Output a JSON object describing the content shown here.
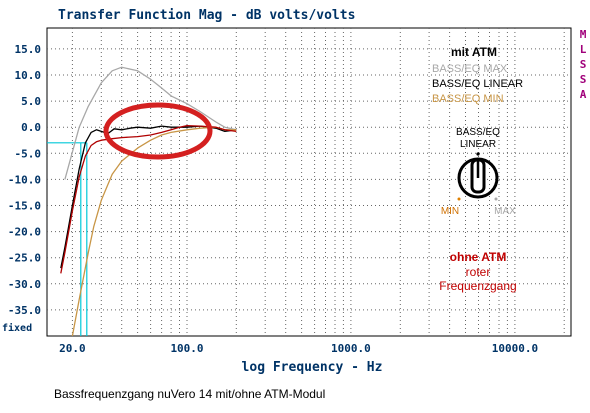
{
  "chart_data": {
    "type": "line",
    "title": "Transfer Function Mag - dB volts/volts",
    "xlabel": "log Frequency - Hz",
    "ylabel": "",
    "xscale": "log",
    "xlim": [
      14,
      22000
    ],
    "ylim": [
      -40,
      19
    ],
    "grid": true,
    "y_ticks": [
      "15.0",
      "10.0",
      "5.0",
      "0.0",
      "-5.0",
      "-10.0",
      "-15.0",
      "-20.0",
      "-25.0",
      "-30.0",
      "-35.0"
    ],
    "y_tick_values": [
      15,
      10,
      5,
      0,
      -5,
      -10,
      -15,
      -20,
      -25,
      -30,
      -35
    ],
    "y_bottom_label": "fixed",
    "x_ticks": [
      "20.0",
      "100.0",
      "1000.0",
      "10000.0"
    ],
    "x_tick_values": [
      20,
      100,
      1000,
      10000
    ],
    "brand_vertical": [
      "M",
      "L",
      "S",
      "S",
      "A"
    ],
    "series": [
      {
        "name": "BASS/EQ MAX",
        "color": "#a8a8a8",
        "x": [
          18,
          22,
          25,
          30,
          35,
          40,
          50,
          60,
          70,
          80,
          100,
          120,
          150,
          170,
          200
        ],
        "y": [
          -10,
          0,
          4,
          8.5,
          10.8,
          11.5,
          10.8,
          9.2,
          7.5,
          6,
          4.5,
          3,
          1,
          0,
          -0.5
        ]
      },
      {
        "name": "BASS/EQ LINEAR",
        "color": "#000000",
        "x": [
          17,
          18,
          20,
          22,
          24,
          26,
          28,
          30,
          33,
          36,
          40,
          45,
          50,
          60,
          70,
          80,
          100,
          120,
          150,
          170,
          200
        ],
        "y": [
          -27,
          -23,
          -15,
          -8,
          -3,
          -1,
          -0.5,
          -0.8,
          -1.2,
          -0.3,
          -0.5,
          -0.2,
          0,
          -0.2,
          0.2,
          0,
          0,
          0.2,
          -0.2,
          -0.8,
          -0.5
        ]
      },
      {
        "name": "BASS/EQ MIN",
        "color": "#c89646",
        "x": [
          20,
          22,
          25,
          27,
          30,
          35,
          40,
          50,
          60,
          70,
          80,
          100,
          120,
          150,
          170,
          200
        ],
        "y": [
          -41,
          -33,
          -24,
          -19,
          -14,
          -9,
          -6.5,
          -4,
          -2.5,
          -1.5,
          -1,
          -0.5,
          -0.2,
          0,
          -0.5,
          -0.5
        ]
      },
      {
        "name": "roter Frequenzgang",
        "color": "#b00000",
        "x": [
          17,
          18,
          20,
          22,
          24,
          26,
          28,
          30,
          35,
          40,
          50,
          60,
          70,
          80,
          90,
          100,
          120,
          150,
          170,
          200
        ],
        "y": [
          -28,
          -24,
          -16,
          -9.5,
          -5.5,
          -3.5,
          -2.8,
          -2.5,
          -2.2,
          -2,
          -1.8,
          -1.5,
          -1,
          -0.5,
          0,
          0.3,
          0.2,
          0,
          -0.5,
          -0.8
        ]
      }
    ],
    "marker_x": [
      22.5,
      24.5
    ],
    "marker_y": -3
  },
  "legend": {
    "title": "mit ATM",
    "items": [
      {
        "label": "BASS/EQ MAX",
        "color": "#a8a8a8"
      },
      {
        "label": "BASS/EQ LINEAR",
        "color": "#000000"
      },
      {
        "label": "BASS/EQ MIN",
        "color": "#c89646"
      }
    ]
  },
  "knob": {
    "label_line1": "BASS/EQ",
    "label_line2": "LINEAR",
    "min_label": "MIN",
    "max_label": "MAX"
  },
  "ohne": {
    "title": "ohne ATM",
    "line2": "roter",
    "line3": "Frequenzgang"
  },
  "caption": "Bassfrequenzgang nuVero 14 mit/ohne ATM-Modul",
  "colors": {
    "axis_text": "#003366",
    "brand": "#a0007a",
    "highlight": "#d42020",
    "marker": "#00c8d8",
    "red_text": "#c00000",
    "orange_text": "#d07000"
  }
}
